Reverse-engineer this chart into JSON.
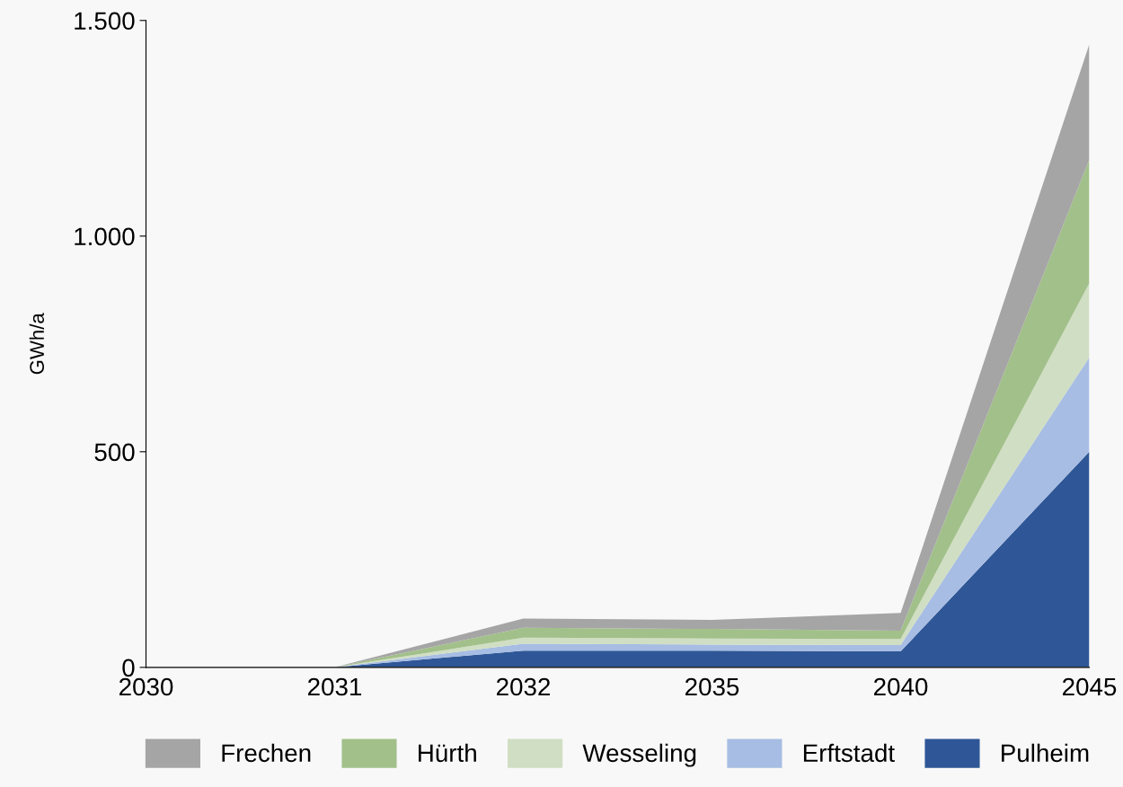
{
  "chart_data": {
    "type": "area",
    "stacked": true,
    "ylabel": "GWh/a",
    "categories": [
      "2030",
      "2031",
      "2032",
      "2035",
      "2040",
      "2045"
    ],
    "series": [
      {
        "name": "Pulheim",
        "color": "#2f5797",
        "values": [
          0,
          0,
          39,
          39,
          37,
          500
        ]
      },
      {
        "name": "Erftstadt",
        "color": "#a7bde3",
        "values": [
          0,
          0,
          16,
          14,
          15,
          219
        ]
      },
      {
        "name": "Wesseling",
        "color": "#d0dec3",
        "values": [
          0,
          0,
          14,
          14,
          14,
          172
        ]
      },
      {
        "name": "Hürth",
        "color": "#a2c08a",
        "values": [
          0,
          0,
          23,
          22,
          19,
          286
        ]
      },
      {
        "name": "Frechen",
        "color": "#a5a5a5",
        "values": [
          0,
          0,
          21,
          21,
          41,
          268
        ]
      }
    ],
    "ylim": [
      0,
      1500
    ],
    "yticks": [
      0,
      500,
      {
        "value": 1000,
        "label": "1.000"
      },
      {
        "value": 1500,
        "label": "1.500"
      }
    ],
    "grid": false,
    "legend": "bottom"
  }
}
